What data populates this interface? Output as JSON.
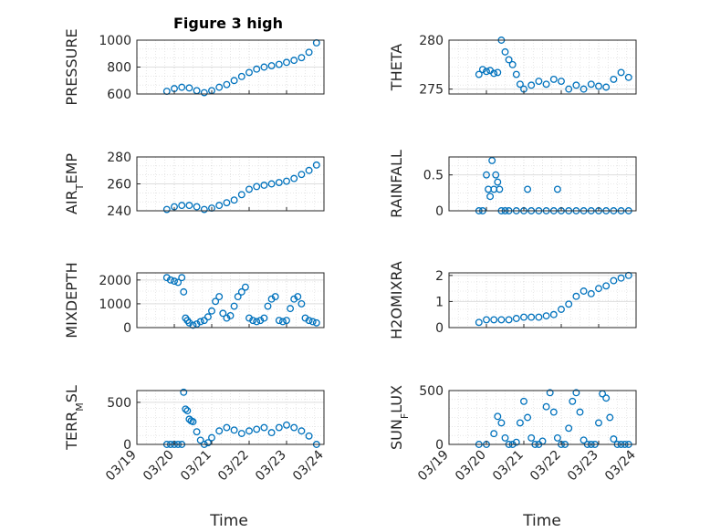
{
  "figure": {
    "title": "Figure 3 high",
    "xlabel": "Time"
  },
  "colors": {
    "marker": "#0072BD",
    "axis": "#262626",
    "grid": "#bdbdbd",
    "background": "#ffffff"
  },
  "chart_data": [
    {
      "type": "scatter",
      "ylabel": "PRESSURE",
      "ylim": [
        600,
        1000
      ],
      "yticks": [
        "600",
        "800",
        "1000"
      ],
      "xticks": [],
      "grid": true,
      "x": [
        0.8,
        1.0,
        1.2,
        1.4,
        1.6,
        1.8,
        2.0,
        2.2,
        2.4,
        2.6,
        2.8,
        3.0,
        3.2,
        3.4,
        3.6,
        3.8,
        4.0,
        4.2,
        4.4,
        4.6,
        4.8
      ],
      "y": [
        620,
        640,
        650,
        645,
        625,
        610,
        625,
        650,
        670,
        700,
        730,
        760,
        785,
        800,
        810,
        820,
        835,
        850,
        870,
        910,
        980
      ]
    },
    {
      "type": "scatter",
      "ylabel": "THETA",
      "ylim": [
        274.5,
        280
      ],
      "yticks": [
        "275",
        "280"
      ],
      "xticks": [],
      "grid": true,
      "x": [
        0.8,
        0.9,
        1.0,
        1.1,
        1.2,
        1.3,
        1.4,
        1.5,
        1.6,
        1.7,
        1.8,
        1.9,
        2.0,
        2.2,
        2.4,
        2.6,
        2.8,
        3.0,
        3.2,
        3.4,
        3.6,
        3.8,
        4.0,
        4.2,
        4.4,
        4.6,
        4.8
      ],
      "y": [
        276.5,
        277,
        276.8,
        276.9,
        276.6,
        276.7,
        280,
        278.8,
        278,
        277.5,
        276.5,
        275.5,
        275,
        275.4,
        275.8,
        275.5,
        276,
        275.8,
        275,
        275.4,
        275,
        275.5,
        275.3,
        275.2,
        276,
        276.7,
        276.2
      ]
    },
    {
      "type": "scatter",
      "ylabel": "AIR_TEMP",
      "ylim": [
        240,
        280
      ],
      "yticks": [
        "240",
        "260",
        "280"
      ],
      "xticks": [],
      "grid": true,
      "x": [
        0.8,
        1.0,
        1.2,
        1.4,
        1.6,
        1.8,
        2.0,
        2.2,
        2.4,
        2.6,
        2.8,
        3.0,
        3.2,
        3.4,
        3.6,
        3.8,
        4.0,
        4.2,
        4.4,
        4.6,
        4.8
      ],
      "y": [
        241,
        243,
        244,
        244,
        243,
        241,
        242,
        244,
        246,
        248,
        252,
        256,
        258,
        259,
        260,
        261,
        262,
        264,
        267,
        270,
        274
      ]
    },
    {
      "type": "scatter",
      "ylabel": "RAINFALL",
      "ylim": [
        0,
        0.75
      ],
      "yticks": [
        "0",
        "0.5"
      ],
      "xticks": [],
      "grid": true,
      "x": [
        0.8,
        0.9,
        1.0,
        1.05,
        1.1,
        1.15,
        1.2,
        1.25,
        1.3,
        1.35,
        1.4,
        1.5,
        1.6,
        1.8,
        2.0,
        2.2,
        2.4,
        2.6,
        2.8,
        3.0,
        3.2,
        3.4,
        3.6,
        3.8,
        4.0,
        4.2,
        4.4,
        4.6,
        4.8,
        2.1,
        2.9
      ],
      "y": [
        0,
        0,
        0.5,
        0.3,
        0.2,
        0.7,
        0.3,
        0.5,
        0.4,
        0.3,
        0,
        0,
        0,
        0,
        0,
        0,
        0,
        0,
        0,
        0,
        0,
        0,
        0,
        0,
        0,
        0,
        0,
        0,
        0,
        0.3,
        0.3
      ]
    },
    {
      "type": "scatter",
      "ylabel": "MIXDEPTH",
      "ylim": [
        0,
        2300
      ],
      "yticks": [
        "0",
        "1000",
        "2000"
      ],
      "xticks": [],
      "grid": true,
      "x": [
        0.8,
        0.9,
        1.0,
        1.1,
        1.2,
        1.25,
        1.3,
        1.35,
        1.4,
        1.5,
        1.6,
        1.7,
        1.8,
        1.9,
        2.0,
        2.1,
        2.2,
        2.3,
        2.4,
        2.5,
        2.6,
        2.7,
        2.8,
        2.9,
        3.0,
        3.1,
        3.2,
        3.3,
        3.4,
        3.5,
        3.6,
        3.7,
        3.8,
        3.9,
        4.0,
        4.1,
        4.2,
        4.3,
        4.4,
        4.5,
        4.6,
        4.7,
        4.8
      ],
      "y": [
        2100,
        2000,
        1950,
        1900,
        2100,
        1500,
        400,
        300,
        200,
        100,
        150,
        250,
        300,
        450,
        700,
        1100,
        1300,
        600,
        400,
        500,
        900,
        1300,
        1500,
        1700,
        400,
        300,
        250,
        300,
        400,
        900,
        1200,
        1300,
        300,
        250,
        300,
        800,
        1200,
        1300,
        1000,
        400,
        300,
        250,
        200
      ]
    },
    {
      "type": "scatter",
      "ylabel": "H2OMIXRA",
      "ylim": [
        0,
        2.1
      ],
      "yticks": [
        "0",
        "1",
        "2"
      ],
      "xticks": [],
      "grid": true,
      "x": [
        0.8,
        1.0,
        1.2,
        1.4,
        1.6,
        1.8,
        2.0,
        2.2,
        2.4,
        2.6,
        2.8,
        3.0,
        3.2,
        3.4,
        3.6,
        3.8,
        4.0,
        4.2,
        4.4,
        4.6,
        4.8
      ],
      "y": [
        0.2,
        0.3,
        0.3,
        0.3,
        0.3,
        0.35,
        0.4,
        0.4,
        0.4,
        0.45,
        0.5,
        0.7,
        0.9,
        1.2,
        1.4,
        1.3,
        1.5,
        1.6,
        1.8,
        1.9,
        2.0
      ]
    },
    {
      "type": "scatter",
      "ylabel": "TERR_MSL",
      "ylim": [
        0,
        640
      ],
      "yticks": [
        "0",
        "500"
      ],
      "xticks": [
        "03/19",
        "03/20",
        "03/21",
        "03/22",
        "03/23",
        "03/24"
      ],
      "grid": true,
      "x": [
        0.8,
        0.9,
        1.0,
        1.1,
        1.2,
        1.25,
        1.3,
        1.35,
        1.4,
        1.45,
        1.5,
        1.6,
        1.7,
        1.8,
        1.9,
        2.0,
        2.2,
        2.4,
        2.6,
        2.8,
        3.0,
        3.2,
        3.4,
        3.6,
        3.8,
        4.0,
        4.2,
        4.4,
        4.6,
        4.8
      ],
      "y": [
        0,
        0,
        0,
        0,
        0,
        620,
        420,
        400,
        300,
        280,
        270,
        150,
        50,
        0,
        20,
        80,
        160,
        200,
        170,
        130,
        160,
        180,
        200,
        140,
        200,
        230,
        200,
        160,
        100,
        0
      ]
    },
    {
      "type": "scatter",
      "ylabel": "SUN_FLUX",
      "ylim": [
        0,
        500
      ],
      "yticks": [
        "0",
        "500"
      ],
      "xticks": [
        "03/19",
        "03/20",
        "03/21",
        "03/22",
        "03/23",
        "03/24"
      ],
      "grid": true,
      "x": [
        0.8,
        1.0,
        1.2,
        1.3,
        1.4,
        1.5,
        1.6,
        1.7,
        1.8,
        1.9,
        2.0,
        2.1,
        2.2,
        2.3,
        2.4,
        2.5,
        2.6,
        2.7,
        2.8,
        2.9,
        3.0,
        3.1,
        3.2,
        3.3,
        3.4,
        3.5,
        3.6,
        3.7,
        3.8,
        3.9,
        4.0,
        4.1,
        4.2,
        4.3,
        4.4,
        4.5,
        4.6,
        4.7,
        4.8
      ],
      "y": [
        0,
        0,
        100,
        260,
        200,
        60,
        0,
        0,
        20,
        200,
        400,
        250,
        60,
        0,
        0,
        30,
        350,
        480,
        300,
        60,
        0,
        0,
        150,
        400,
        480,
        300,
        40,
        0,
        0,
        0,
        200,
        470,
        430,
        250,
        50,
        0,
        0,
        0,
        0
      ]
    }
  ]
}
